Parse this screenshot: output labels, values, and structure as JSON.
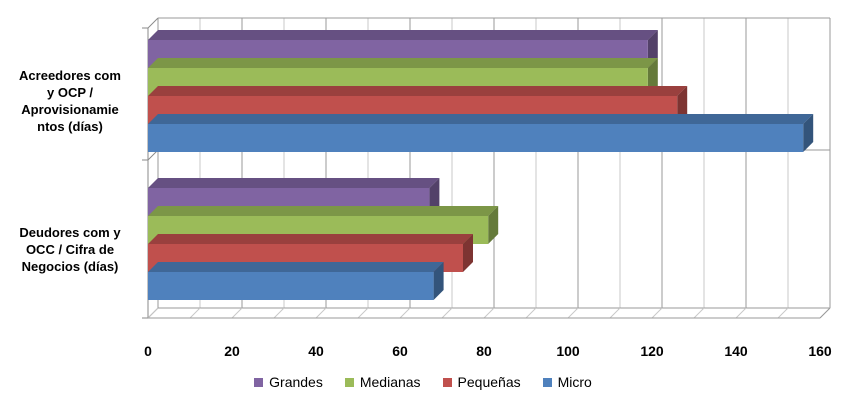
{
  "chart_data": {
    "type": "bar",
    "orientation": "horizontal",
    "title": "",
    "xlabel": "",
    "ylabel": "",
    "categories": [
      "Acreedores com y OCP / Aprovisionamientos (días)",
      "Deudores com y OCC / Cifra de Negocios (días)"
    ],
    "category_label_lines": [
      [
        "Acreedores com",
        "y OCP /",
        "Aprovisionamie",
        "ntos (días)"
      ],
      [
        "Deudores com y",
        "OCC / Cifra de",
        "Negocios (días)"
      ]
    ],
    "series": [
      {
        "name": "Micro",
        "color": "#4F81BD",
        "values": [
          156,
          68
        ]
      },
      {
        "name": "Pequeñas",
        "color": "#C0504D",
        "values": [
          126,
          75
        ]
      },
      {
        "name": "Medianas",
        "color": "#9BBB59",
        "values": [
          119,
          81
        ]
      },
      {
        "name": "Grandes",
        "color": "#8064A2",
        "values": [
          119,
          67
        ]
      }
    ],
    "legend_order": [
      "Grandes",
      "Medianas",
      "Pequeñas",
      "Micro"
    ],
    "xlim": [
      0,
      160
    ],
    "xticks": [
      0,
      20,
      40,
      60,
      80,
      100,
      120,
      140,
      160
    ],
    "grid": true,
    "legend_position": "bottom",
    "style": "3d-bar"
  }
}
